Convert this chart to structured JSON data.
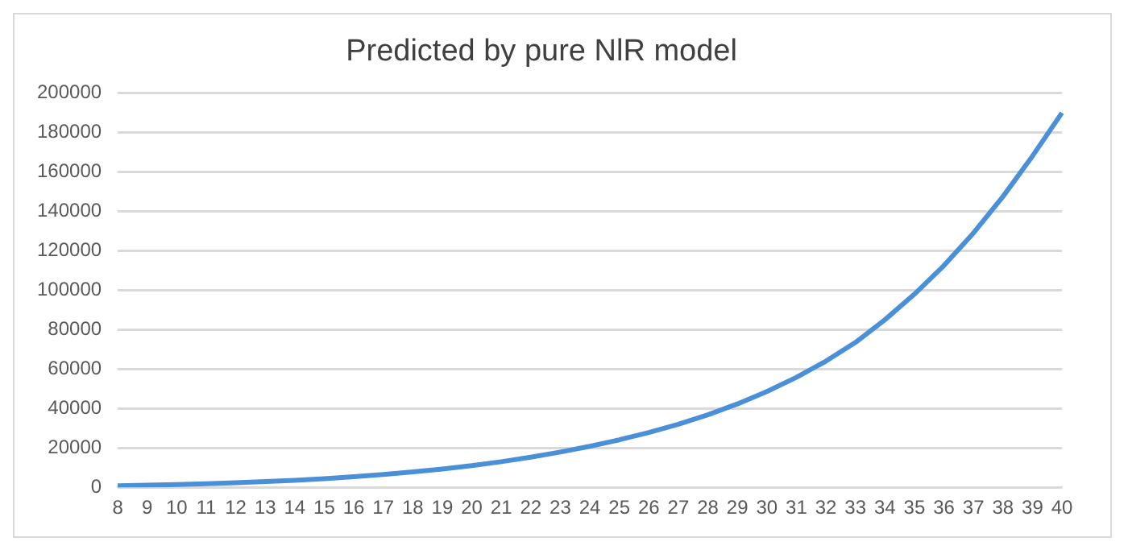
{
  "chart_data": {
    "type": "line",
    "title": "Predicted by pure NlR model",
    "categories": [
      "8",
      "9",
      "10",
      "11",
      "12",
      "13",
      "14",
      "15",
      "16",
      "17",
      "18",
      "19",
      "20",
      "21",
      "22",
      "23",
      "24",
      "25",
      "26",
      "27",
      "28",
      "29",
      "30",
      "31",
      "32",
      "33",
      "34",
      "35",
      "36",
      "37",
      "38",
      "39",
      "40"
    ],
    "series": [
      {
        "color": "#4a90d9",
        "values": [
          800,
          1100,
          1400,
          1800,
          2300,
          2900,
          3600,
          4400,
          5400,
          6500,
          7800,
          9300,
          11000,
          13000,
          15300,
          17900,
          20800,
          24100,
          27800,
          32000,
          36800,
          42300,
          48600,
          55800,
          64000,
          73500,
          85000,
          98000,
          112500,
          129000,
          147500,
          168000,
          190000
        ]
      }
    ],
    "ylim": [
      0,
      200000
    ],
    "yticks": [
      0,
      20000,
      40000,
      60000,
      80000,
      100000,
      120000,
      140000,
      160000,
      180000,
      200000
    ],
    "grid": "y",
    "legend": false,
    "marker": "none",
    "line_style": "solid"
  }
}
